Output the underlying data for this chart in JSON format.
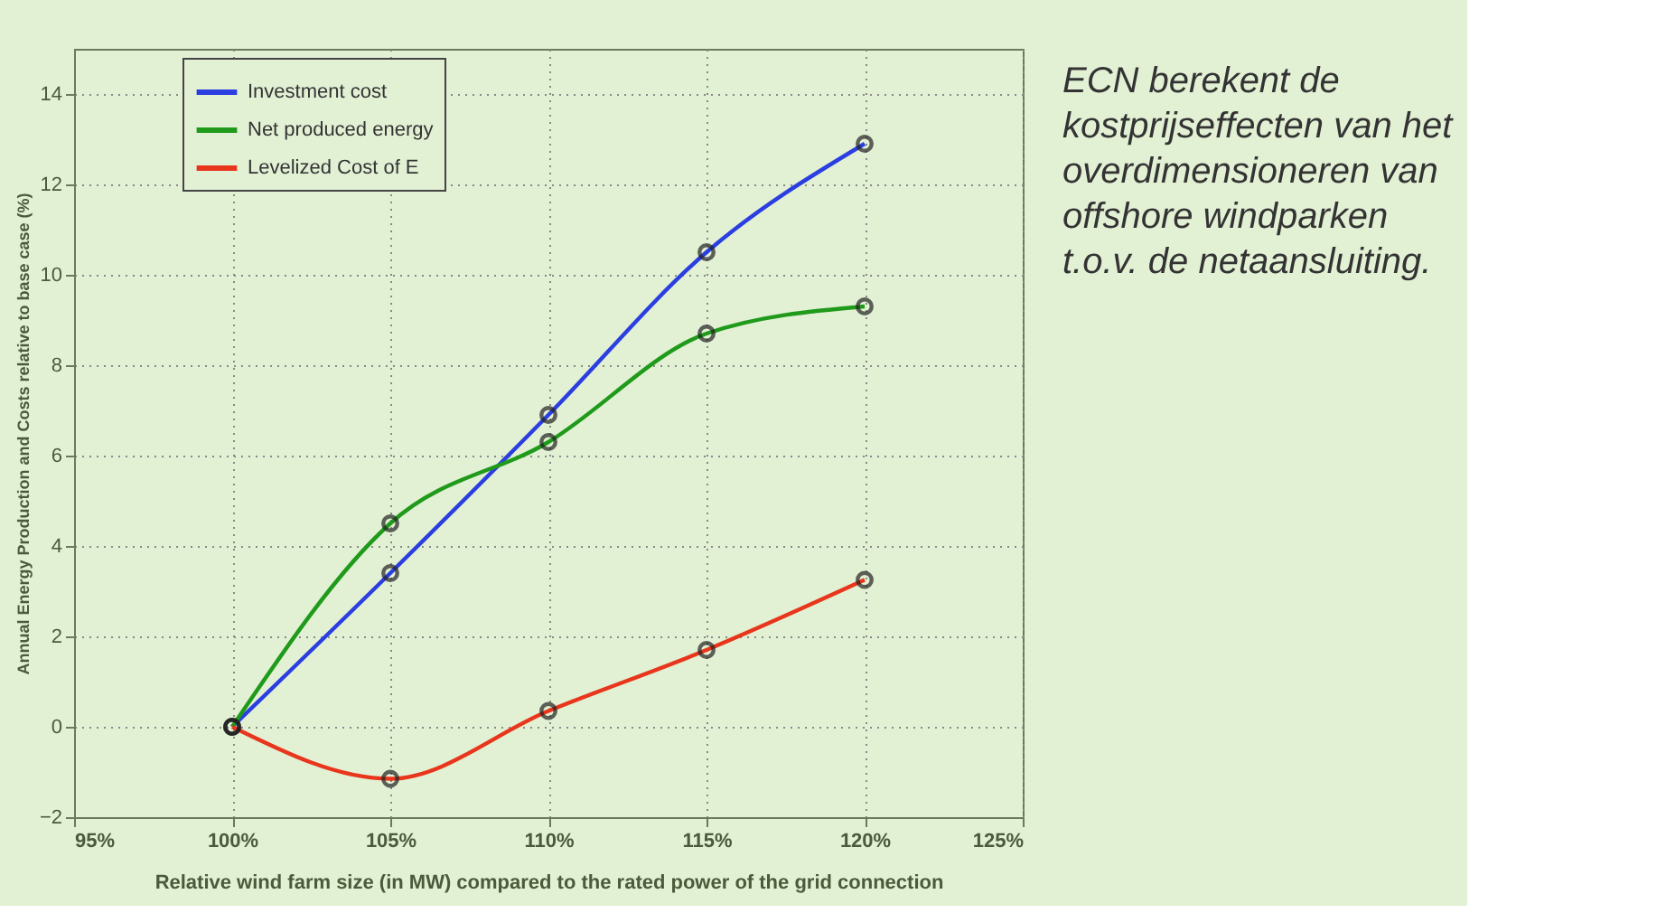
{
  "chart_data": {
    "type": "line",
    "xlabel": "Relative wind farm size (in MW) compared to the rated power of the grid connection",
    "ylabel": "Annual Energy Production and Costs relative to base case (%)",
    "x": [
      100,
      105,
      110,
      115,
      120
    ],
    "series": [
      {
        "name": "Investment cost",
        "color": "#2b3ee0",
        "values": [
          0,
          3.4,
          6.9,
          10.5,
          12.9
        ]
      },
      {
        "name": "Net produced energy",
        "color": "#1f9a1a",
        "values": [
          0,
          4.5,
          6.3,
          8.7,
          9.3
        ]
      },
      {
        "name": "Levelized Cost of E",
        "color": "#e8361c",
        "values": [
          0,
          -1.15,
          0.35,
          1.7,
          3.25
        ]
      }
    ],
    "xlim": [
      95,
      125
    ],
    "xticks": [
      {
        "value": 95,
        "label": "95%"
      },
      {
        "value": 100,
        "label": "100%"
      },
      {
        "value": 105,
        "label": "105%"
      },
      {
        "value": 110,
        "label": "110%"
      },
      {
        "value": 115,
        "label": "115%"
      },
      {
        "value": 120,
        "label": "120%"
      },
      {
        "value": 125,
        "label": "125%"
      }
    ],
    "ylim": [
      -2,
      15
    ],
    "yticks": [
      {
        "value": -2,
        "label": "−2"
      },
      0,
      2,
      4,
      6,
      8,
      10,
      12,
      14
    ],
    "grid": true,
    "legend": "top left",
    "marker": "circle",
    "line_style": "solid",
    "annotations": [
      "ECN berekent de\nkostprijseffecten van het\noverdimensioneren van\noffshore windparken\nt.o.v. de netaansluiting."
    ]
  }
}
